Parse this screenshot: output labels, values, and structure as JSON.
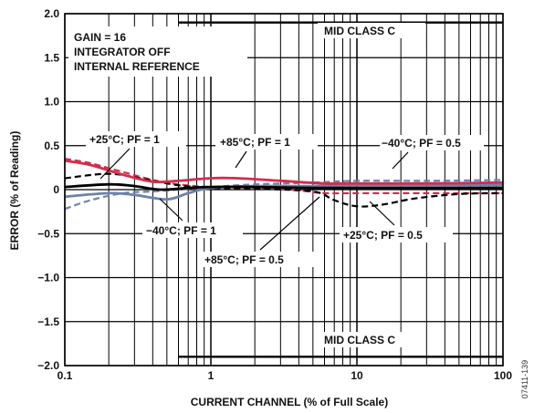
{
  "chart_data": {
    "type": "line",
    "xlabel": "CURRENT CHANNEL (% of Full Scale)",
    "ylabel": "ERROR (% of Reading)",
    "x_scale": "log",
    "xlim": [
      0.1,
      100
    ],
    "ylim": [
      -2.0,
      2.0
    ],
    "grid": true,
    "x_ticks": [
      "0.1",
      "1",
      "10",
      "100"
    ],
    "y_ticks": [
      "2.0",
      "1.5",
      "1.0",
      "0.5",
      "0",
      "−0.5",
      "−1.0",
      "−1.5",
      "−2.0"
    ],
    "figure_id": "07411-139",
    "info_box": [
      "GAIN = 16",
      "INTEGRATOR OFF",
      "INTERNAL REFERENCE"
    ],
    "limit_label_upper": "MID CLASS C",
    "limit_label_lower": "MID CLASS C",
    "limits": {
      "upper": {
        "x": [
          0.6,
          100
        ],
        "y": [
          1.9,
          1.9
        ]
      },
      "lower": {
        "x": [
          0.6,
          100
        ],
        "y": [
          -1.9,
          -1.9
        ]
      }
    },
    "series": [
      {
        "label": "+25°C; PF = 1",
        "color": "#000000",
        "dash": false,
        "x": [
          0.1,
          0.2,
          0.3,
          0.45,
          0.7,
          1,
          2,
          5,
          10,
          20,
          50,
          100
        ],
        "y": [
          0.03,
          0.06,
          0.04,
          0.0,
          0.02,
          0.03,
          0.03,
          0.02,
          0.02,
          0.02,
          0.02,
          0.02
        ]
      },
      {
        "label": "+85°C; PF = 1",
        "color": "#d62b4e",
        "dash": false,
        "x": [
          0.1,
          0.15,
          0.25,
          0.4,
          0.6,
          1,
          1.5,
          3,
          6,
          10,
          30,
          100
        ],
        "y": [
          0.33,
          0.28,
          0.17,
          0.09,
          0.1,
          0.13,
          0.13,
          0.1,
          0.07,
          0.07,
          0.07,
          0.08
        ]
      },
      {
        "label": "−40°C; PF = 1",
        "color": "#6e83a9",
        "dash": false,
        "x": [
          0.1,
          0.2,
          0.3,
          0.5,
          0.7,
          1,
          2,
          5,
          10,
          30,
          100
        ],
        "y": [
          -0.08,
          -0.04,
          -0.06,
          -0.11,
          -0.04,
          0.02,
          0.04,
          0.04,
          0.05,
          0.05,
          0.05
        ]
      },
      {
        "label": "+25°C; PF = 0.5",
        "color": "#000000",
        "dash": true,
        "x": [
          0.1,
          0.2,
          0.35,
          0.6,
          1,
          2,
          5,
          7,
          10,
          15,
          25,
          50,
          100
        ],
        "y": [
          0.13,
          0.18,
          0.12,
          0.05,
          0.02,
          0.01,
          -0.02,
          -0.12,
          -0.19,
          -0.17,
          -0.1,
          -0.05,
          -0.04
        ]
      },
      {
        "label": "+85°C; PF = 0.5",
        "color": "#d62b4e",
        "dash": true,
        "x": [
          0.1,
          0.15,
          0.25,
          0.4,
          0.6,
          1,
          2,
          4,
          6,
          10,
          30,
          100
        ],
        "y": [
          0.35,
          0.3,
          0.2,
          0.11,
          0.06,
          0.03,
          0.02,
          -0.01,
          -0.04,
          -0.04,
          -0.04,
          -0.04
        ]
      },
      {
        "label": "−40°C; PF = 0.5",
        "color": "#6e83a9",
        "dash": true,
        "x": [
          0.1,
          0.15,
          0.25,
          0.4,
          0.6,
          1,
          2,
          5,
          10,
          30,
          100
        ],
        "y": [
          -0.22,
          -0.12,
          -0.04,
          -0.02,
          0.0,
          0.03,
          0.06,
          0.08,
          0.1,
          0.1,
          0.11
        ]
      }
    ],
    "annotations": [
      {
        "text": "+25°C; PF = 1",
        "series": 0
      },
      {
        "text": "+85°C; PF = 1",
        "series": 1
      },
      {
        "text": "−40°C; PF = 0.5",
        "series": 5
      },
      {
        "text": "−40°C; PF = 1",
        "series": 2
      },
      {
        "text": "+85°C; PF = 0.5",
        "series": 4
      },
      {
        "text": "+25°C; PF = 0.5",
        "series": 3
      }
    ]
  }
}
